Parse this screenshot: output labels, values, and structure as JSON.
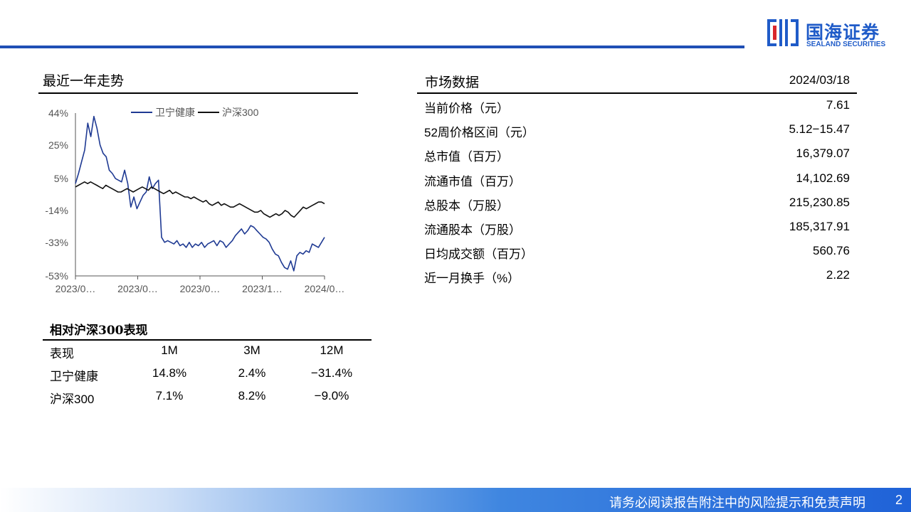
{
  "brand": {
    "name_cn": "国海证券",
    "name_en": "SEALAND SECURITIES",
    "color": "#1f4fb5"
  },
  "left_panel": {
    "title": "最近一年走势"
  },
  "chart_data": {
    "type": "line",
    "y_ticks": [
      "44%",
      "25%",
      "5%",
      "-14%",
      "-33%",
      "-53%"
    ],
    "y_tick_values": [
      44,
      25,
      5,
      -14,
      -33,
      -53
    ],
    "x_ticks": [
      "2023/0…",
      "2023/0…",
      "2023/0…",
      "2023/1…",
      "2024/0…"
    ],
    "ylim": [
      -53,
      44
    ],
    "legend_position": "top",
    "series": [
      {
        "name": "卫宁健康",
        "color": "#1f3a93",
        "values": [
          2,
          8,
          15,
          22,
          38,
          30,
          42,
          35,
          25,
          20,
          18,
          10,
          8,
          5,
          4,
          3,
          10,
          2,
          -12,
          -6,
          -13,
          -9,
          -5,
          -3,
          6,
          -1,
          2,
          4,
          -30,
          -33,
          -32,
          -33,
          -34,
          -32,
          -35,
          -34,
          -36,
          -33,
          -36,
          -34,
          -35,
          -33,
          -36,
          -34,
          -33,
          -32,
          -35,
          -32,
          -33,
          -36,
          -34,
          -32,
          -29,
          -27,
          -25,
          -28,
          -26,
          -23,
          -24,
          -26,
          -28,
          -30,
          -31,
          -33,
          -37,
          -40,
          -41,
          -45,
          -48,
          -49,
          -44,
          -50,
          -41,
          -39,
          -40,
          -38,
          -39,
          -34,
          -35,
          -36,
          -33,
          -30
        ]
      },
      {
        "name": "沪深300",
        "color": "#111111",
        "values": [
          0,
          1,
          2,
          3,
          2,
          3,
          2,
          1,
          0,
          -1,
          1,
          0,
          -1,
          -2,
          -3,
          -3,
          -2,
          -1,
          -2,
          -3,
          -2,
          -1,
          0,
          -1,
          -2,
          0,
          -1,
          -2,
          -3,
          -4,
          -3,
          -2,
          -4,
          -3,
          -4,
          -5,
          -6,
          -6,
          -7,
          -6,
          -7,
          -8,
          -9,
          -8,
          -10,
          -11,
          -10,
          -9,
          -11,
          -10,
          -11,
          -12,
          -12,
          -11,
          -10,
          -11,
          -12,
          -13,
          -14,
          -15,
          -15,
          -14,
          -16,
          -17,
          -18,
          -17,
          -16,
          -17,
          -16,
          -14,
          -15,
          -17,
          -18,
          -16,
          -14,
          -12,
          -13,
          -12,
          -11,
          -10,
          -9,
          -9,
          -10
        ]
      }
    ]
  },
  "market_data": {
    "title": "市场数据",
    "date": "2024/03/18",
    "rows": [
      {
        "label": "当前价格（元）",
        "value": "7.61"
      },
      {
        "label": "52周价格区间（元）",
        "value": "5.12−15.47"
      },
      {
        "label": "总市值（百万）",
        "value": "16,379.07"
      },
      {
        "label": "流通市值（百万）",
        "value": "14,102.69"
      },
      {
        "label": "总股本（万股）",
        "value": "215,230.85"
      },
      {
        "label": "流通股本（万股）",
        "value": "185,317.91"
      },
      {
        "label": "日均成交额（百万）",
        "value": "560.76"
      },
      {
        "label": "近一月换手（%）",
        "value": "2.22"
      }
    ]
  },
  "performance": {
    "title": "相对沪深300表现",
    "headers": [
      "表现",
      "1M",
      "3M",
      "12M"
    ],
    "rows": [
      [
        "卫宁健康",
        "14.8%",
        "2.4%",
        "−31.4%"
      ],
      [
        "沪深300",
        "7.1%",
        "8.2%",
        "−9.0%"
      ]
    ]
  },
  "footer": {
    "disclaimer": "请务必阅读报告附注中的风险提示和免责声明",
    "page": "2"
  }
}
